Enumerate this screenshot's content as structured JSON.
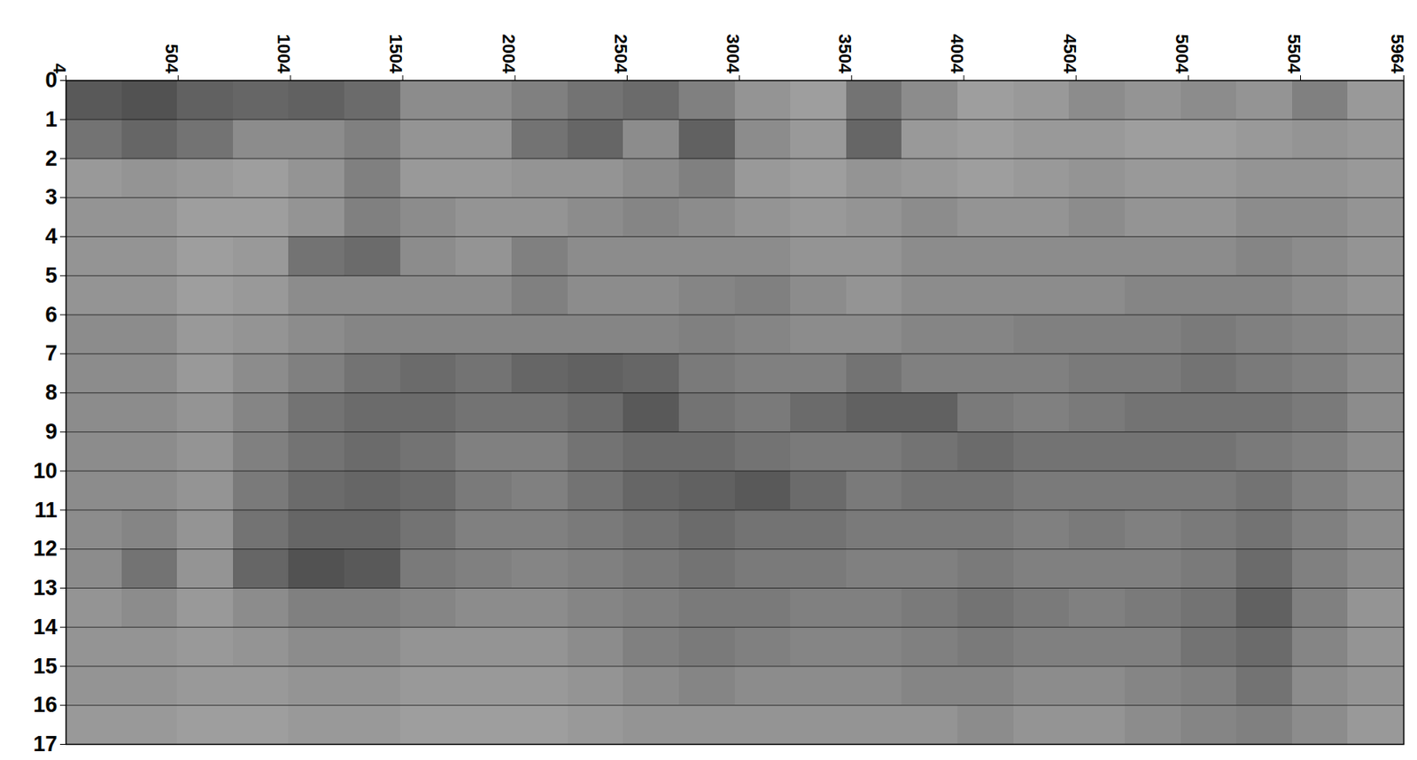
{
  "chart_data": {
    "type": "heatmap",
    "xlim": [
      4,
      5964
    ],
    "xticks": [
      4,
      504,
      1004,
      1504,
      2004,
      2504,
      3004,
      3504,
      4004,
      4504,
      5004,
      5504,
      5964
    ],
    "ylim": [
      0,
      17
    ],
    "yticks": [
      0,
      1,
      2,
      3,
      4,
      5,
      6,
      7,
      8,
      9,
      10,
      11,
      12,
      13,
      14,
      15,
      16,
      17
    ],
    "grid": true,
    "zlim": [
      0,
      1
    ],
    "x_edges": [
      4,
      252,
      501,
      749,
      997,
      1246,
      1494,
      1742,
      1991,
      2239,
      2487,
      2736,
      2984,
      3232,
      3481,
      3729,
      3977,
      4226,
      4474,
      4722,
      4971,
      5219,
      5467,
      5716,
      5964
    ],
    "y_edges": [
      0,
      1,
      2,
      3,
      4,
      5,
      6,
      7,
      8,
      9,
      10,
      11,
      12,
      13,
      14,
      15,
      16,
      17
    ],
    "values": [
      [
        0.65,
        0.68,
        0.62,
        0.6,
        0.62,
        0.58,
        0.45,
        0.45,
        0.5,
        0.55,
        0.58,
        0.5,
        0.42,
        0.38,
        0.55,
        0.45,
        0.38,
        0.4,
        0.45,
        0.42,
        0.45,
        0.42,
        0.5,
        0.4
      ],
      [
        0.55,
        0.6,
        0.55,
        0.45,
        0.45,
        0.5,
        0.42,
        0.42,
        0.55,
        0.6,
        0.45,
        0.62,
        0.45,
        0.4,
        0.6,
        0.4,
        0.38,
        0.4,
        0.4,
        0.38,
        0.38,
        0.4,
        0.42,
        0.4
      ],
      [
        0.4,
        0.42,
        0.4,
        0.38,
        0.42,
        0.5,
        0.4,
        0.4,
        0.42,
        0.42,
        0.45,
        0.5,
        0.4,
        0.38,
        0.42,
        0.4,
        0.38,
        0.4,
        0.42,
        0.4,
        0.4,
        0.42,
        0.42,
        0.4
      ],
      [
        0.42,
        0.42,
        0.38,
        0.38,
        0.42,
        0.5,
        0.45,
        0.42,
        0.42,
        0.45,
        0.48,
        0.45,
        0.42,
        0.4,
        0.42,
        0.45,
        0.42,
        0.42,
        0.45,
        0.42,
        0.42,
        0.45,
        0.45,
        0.42
      ],
      [
        0.42,
        0.42,
        0.38,
        0.4,
        0.55,
        0.58,
        0.45,
        0.42,
        0.5,
        0.45,
        0.45,
        0.45,
        0.45,
        0.42,
        0.42,
        0.45,
        0.45,
        0.45,
        0.45,
        0.45,
        0.45,
        0.48,
        0.45,
        0.42
      ],
      [
        0.42,
        0.42,
        0.38,
        0.4,
        0.45,
        0.45,
        0.45,
        0.45,
        0.5,
        0.45,
        0.45,
        0.48,
        0.5,
        0.45,
        0.42,
        0.45,
        0.45,
        0.45,
        0.45,
        0.48,
        0.48,
        0.48,
        0.45,
        0.42
      ],
      [
        0.45,
        0.45,
        0.4,
        0.42,
        0.45,
        0.48,
        0.48,
        0.48,
        0.48,
        0.48,
        0.48,
        0.5,
        0.48,
        0.45,
        0.45,
        0.48,
        0.48,
        0.5,
        0.5,
        0.5,
        0.52,
        0.5,
        0.48,
        0.45
      ],
      [
        0.45,
        0.45,
        0.4,
        0.45,
        0.5,
        0.55,
        0.58,
        0.55,
        0.6,
        0.62,
        0.6,
        0.52,
        0.5,
        0.5,
        0.55,
        0.5,
        0.5,
        0.5,
        0.52,
        0.52,
        0.55,
        0.52,
        0.5,
        0.45
      ],
      [
        0.45,
        0.45,
        0.42,
        0.48,
        0.55,
        0.58,
        0.58,
        0.55,
        0.55,
        0.58,
        0.65,
        0.55,
        0.52,
        0.58,
        0.62,
        0.62,
        0.52,
        0.5,
        0.52,
        0.55,
        0.55,
        0.55,
        0.52,
        0.45
      ],
      [
        0.45,
        0.45,
        0.42,
        0.5,
        0.55,
        0.58,
        0.55,
        0.5,
        0.5,
        0.55,
        0.58,
        0.58,
        0.55,
        0.52,
        0.52,
        0.55,
        0.58,
        0.55,
        0.55,
        0.55,
        0.55,
        0.52,
        0.5,
        0.45
      ],
      [
        0.45,
        0.45,
        0.42,
        0.52,
        0.58,
        0.6,
        0.58,
        0.52,
        0.5,
        0.55,
        0.6,
        0.62,
        0.65,
        0.58,
        0.52,
        0.55,
        0.55,
        0.52,
        0.52,
        0.52,
        0.52,
        0.55,
        0.5,
        0.45
      ],
      [
        0.45,
        0.48,
        0.42,
        0.55,
        0.6,
        0.6,
        0.55,
        0.5,
        0.5,
        0.52,
        0.55,
        0.58,
        0.55,
        0.55,
        0.52,
        0.52,
        0.52,
        0.5,
        0.52,
        0.5,
        0.52,
        0.55,
        0.5,
        0.45
      ],
      [
        0.45,
        0.55,
        0.42,
        0.6,
        0.68,
        0.65,
        0.52,
        0.5,
        0.48,
        0.5,
        0.52,
        0.55,
        0.52,
        0.52,
        0.5,
        0.5,
        0.52,
        0.5,
        0.5,
        0.5,
        0.52,
        0.58,
        0.5,
        0.45
      ],
      [
        0.42,
        0.45,
        0.4,
        0.45,
        0.5,
        0.5,
        0.48,
        0.45,
        0.45,
        0.48,
        0.5,
        0.52,
        0.52,
        0.5,
        0.5,
        0.52,
        0.55,
        0.52,
        0.5,
        0.52,
        0.55,
        0.62,
        0.5,
        0.42
      ],
      [
        0.42,
        0.42,
        0.4,
        0.42,
        0.45,
        0.45,
        0.42,
        0.42,
        0.42,
        0.45,
        0.5,
        0.52,
        0.5,
        0.48,
        0.48,
        0.5,
        0.52,
        0.5,
        0.5,
        0.5,
        0.55,
        0.58,
        0.48,
        0.42
      ],
      [
        0.42,
        0.42,
        0.4,
        0.4,
        0.42,
        0.42,
        0.4,
        0.4,
        0.4,
        0.42,
        0.45,
        0.48,
        0.45,
        0.45,
        0.45,
        0.48,
        0.48,
        0.45,
        0.45,
        0.48,
        0.5,
        0.55,
        0.45,
        0.42
      ],
      [
        0.4,
        0.4,
        0.38,
        0.38,
        0.4,
        0.4,
        0.38,
        0.38,
        0.38,
        0.4,
        0.42,
        0.42,
        0.42,
        0.42,
        0.42,
        0.42,
        0.45,
        0.42,
        0.42,
        0.45,
        0.48,
        0.5,
        0.45,
        0.4
      ]
    ]
  }
}
